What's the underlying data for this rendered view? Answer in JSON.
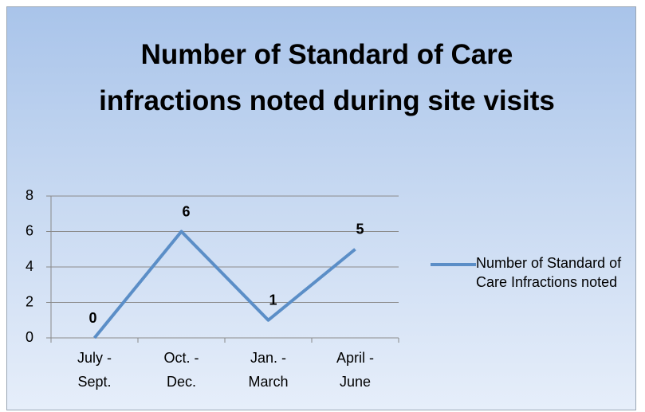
{
  "chart_data": {
    "type": "line",
    "title": "Number of Standard of Care infractions noted during site visits",
    "categories": [
      "July - Sept.",
      "Oct. - Dec.",
      "Jan. - March",
      "April - June"
    ],
    "series": [
      {
        "name": "Number of Standard of Care Infractions noted",
        "color": "#5b8ec7",
        "values": [
          0,
          6,
          1,
          5
        ]
      }
    ],
    "ylim": [
      0,
      8
    ],
    "yticks": [
      0,
      2,
      4,
      6,
      8
    ],
    "grid": true,
    "legend": "right"
  }
}
